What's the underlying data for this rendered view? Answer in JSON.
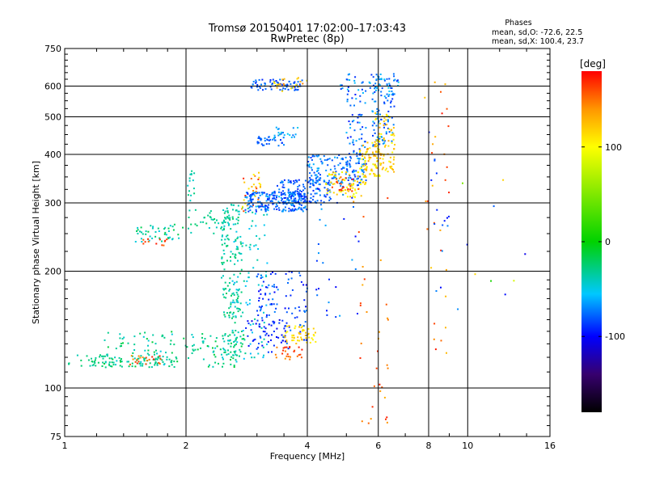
{
  "chart_data": {
    "type": "scatter",
    "title": "Tromsø 20150401 17:02:00–17:03:43",
    "subtitle": "RwPretec (8p)",
    "xlabel": "Frequency [MHz]",
    "ylabel": "Stationary phase Virtual Height [km]",
    "x_scale": "log2",
    "y_scale": "log",
    "xlim": [
      1,
      16
    ],
    "ylim": [
      75,
      750
    ],
    "x_ticks": [
      {
        "v": 1,
        "label": "1"
      },
      {
        "v": 2,
        "label": "2"
      },
      {
        "v": 4,
        "label": "4"
      },
      {
        "v": 6,
        "label": "6"
      },
      {
        "v": 8,
        "label": "8"
      },
      {
        "v": 10,
        "label": "10"
      },
      {
        "v": 16,
        "label": "16"
      }
    ],
    "y_ticks": [
      {
        "v": 75,
        "label": "75"
      },
      {
        "v": 100,
        "label": "100"
      },
      {
        "v": 200,
        "label": "200"
      },
      {
        "v": 300,
        "label": "300"
      },
      {
        "v": 400,
        "label": "400"
      },
      {
        "v": 500,
        "label": "500"
      },
      {
        "v": 600,
        "label": "600"
      },
      {
        "v": 750,
        "label": "750"
      }
    ],
    "grid": true,
    "phases": {
      "heading": "Phases",
      "line_o": "mean, sd,O: -72.6, 22.5",
      "line_x": "mean, sd,X: 100.4, 23.7"
    },
    "colorbar": {
      "label": "[deg]",
      "range": [
        -180,
        180
      ],
      "ticks": [
        {
          "v": 100,
          "label": "100"
        },
        {
          "v": 0,
          "label": "0"
        },
        {
          "v": -100,
          "label": "-100"
        }
      ]
    },
    "point_clusters": [
      {
        "x": [
          1.02,
          1.9
        ],
        "y": [
          113,
          122
        ],
        "n": 90,
        "phase": [
          -40,
          -20
        ]
      },
      {
        "x": [
          1.25,
          2.8
        ],
        "y": [
          113,
          140
        ],
        "n": 140,
        "phase": [
          -50,
          -10
        ]
      },
      {
        "x": [
          1.45,
          1.75
        ],
        "y": [
          115,
          122
        ],
        "n": 20,
        "phase": [
          140,
          175
        ]
      },
      {
        "x": [
          1.5,
          2.0
        ],
        "y": [
          238,
          265
        ],
        "n": 45,
        "phase": [
          -50,
          -15
        ]
      },
      {
        "x": [
          1.55,
          1.8
        ],
        "y": [
          233,
          242
        ],
        "n": 12,
        "phase": [
          150,
          175
        ]
      },
      {
        "x": [
          2.0,
          2.6
        ],
        "y": [
          250,
          290
        ],
        "n": 40,
        "phase": [
          -45,
          -20
        ]
      },
      {
        "x": [
          2.02,
          2.1
        ],
        "y": [
          300,
          365
        ],
        "n": 15,
        "phase": [
          -45,
          -25
        ]
      },
      {
        "x": [
          2.45,
          2.75
        ],
        "y": [
          120,
          300
        ],
        "n": 180,
        "phase": [
          -45,
          -20
        ]
      },
      {
        "x": [
          2.6,
          3.2
        ],
        "y": [
          118,
          300
        ],
        "n": 90,
        "phase": [
          -60,
          -30
        ]
      },
      {
        "x": [
          2.75,
          3.1
        ],
        "y": [
          280,
          360
        ],
        "n": 30,
        "phase": [
          100,
          170
        ]
      },
      {
        "x": [
          2.8,
          4.0
        ],
        "y": [
          285,
          320
        ],
        "n": 220,
        "phase": [
          -95,
          -60
        ]
      },
      {
        "x": [
          3.3,
          4.6
        ],
        "y": [
          300,
          345
        ],
        "n": 120,
        "phase": [
          -95,
          -65
        ]
      },
      {
        "x": [
          4.0,
          5.6
        ],
        "y": [
          330,
          400
        ],
        "n": 140,
        "phase": [
          -90,
          -60
        ]
      },
      {
        "x": [
          4.4,
          5.6
        ],
        "y": [
          310,
          360
        ],
        "n": 70,
        "phase": [
          90,
          130
        ]
      },
      {
        "x": [
          4.6,
          5.2
        ],
        "y": [
          320,
          350
        ],
        "n": 18,
        "phase": [
          150,
          175
        ]
      },
      {
        "x": [
          5.0,
          5.6
        ],
        "y": [
          360,
          590
        ],
        "n": 80,
        "phase": [
          -95,
          -55
        ]
      },
      {
        "x": [
          5.4,
          6.1
        ],
        "y": [
          350,
          440
        ],
        "n": 80,
        "phase": [
          90,
          140
        ]
      },
      {
        "x": [
          5.8,
          6.6
        ],
        "y": [
          420,
          640
        ],
        "n": 100,
        "phase": [
          -90,
          -55
        ]
      },
      {
        "x": [
          5.9,
          6.6
        ],
        "y": [
          360,
          520
        ],
        "n": 70,
        "phase": [
          95,
          135
        ]
      },
      {
        "x": [
          3.0,
          3.5
        ],
        "y": [
          420,
          445
        ],
        "n": 35,
        "phase": [
          -90,
          -70
        ]
      },
      {
        "x": [
          3.3,
          3.8
        ],
        "y": [
          440,
          470
        ],
        "n": 20,
        "phase": [
          -80,
          -40
        ]
      },
      {
        "x": [
          2.9,
          3.9
        ],
        "y": [
          585,
          625
        ],
        "n": 70,
        "phase": [
          -95,
          -70
        ]
      },
      {
        "x": [
          3.3,
          4.0
        ],
        "y": [
          580,
          640
        ],
        "n": 20,
        "phase": [
          90,
          150
        ]
      },
      {
        "x": [
          4.8,
          6.8
        ],
        "y": [
          580,
          650
        ],
        "n": 40,
        "phase": [
          -90,
          -50
        ]
      },
      {
        "x": [
          3.0,
          4.0
        ],
        "y": [
          130,
          200
        ],
        "n": 110,
        "phase": [
          -100,
          -70
        ]
      },
      {
        "x": [
          3.5,
          4.2
        ],
        "y": [
          130,
          145
        ],
        "n": 50,
        "phase": [
          100,
          130
        ]
      },
      {
        "x": [
          3.3,
          3.9
        ],
        "y": [
          118,
          128
        ],
        "n": 25,
        "phase": [
          140,
          175
        ]
      },
      {
        "x": [
          2.8,
          3.6
        ],
        "y": [
          123,
          150
        ],
        "n": 40,
        "phase": [
          -110,
          -85
        ]
      },
      {
        "x": [
          4.2,
          5.4
        ],
        "y": [
          150,
          330
        ],
        "n": 30,
        "phase": [
          -100,
          -60
        ]
      },
      {
        "x": [
          5.2,
          6.4
        ],
        "y": [
          80,
          330
        ],
        "n": 35,
        "phase": [
          130,
          175
        ]
      },
      {
        "x": [
          7.8,
          9.0
        ],
        "y": [
          120,
          650
        ],
        "n": 30,
        "phase": [
          120,
          175
        ]
      },
      {
        "x": [
          7.9,
          9.0
        ],
        "y": [
          150,
          480
        ],
        "n": 15,
        "phase": [
          -100,
          -70
        ]
      },
      {
        "x": [
          9.0,
          14.5
        ],
        "y": [
          140,
          360
        ],
        "n": 10,
        "phase": [
          -110,
          120
        ]
      }
    ]
  }
}
